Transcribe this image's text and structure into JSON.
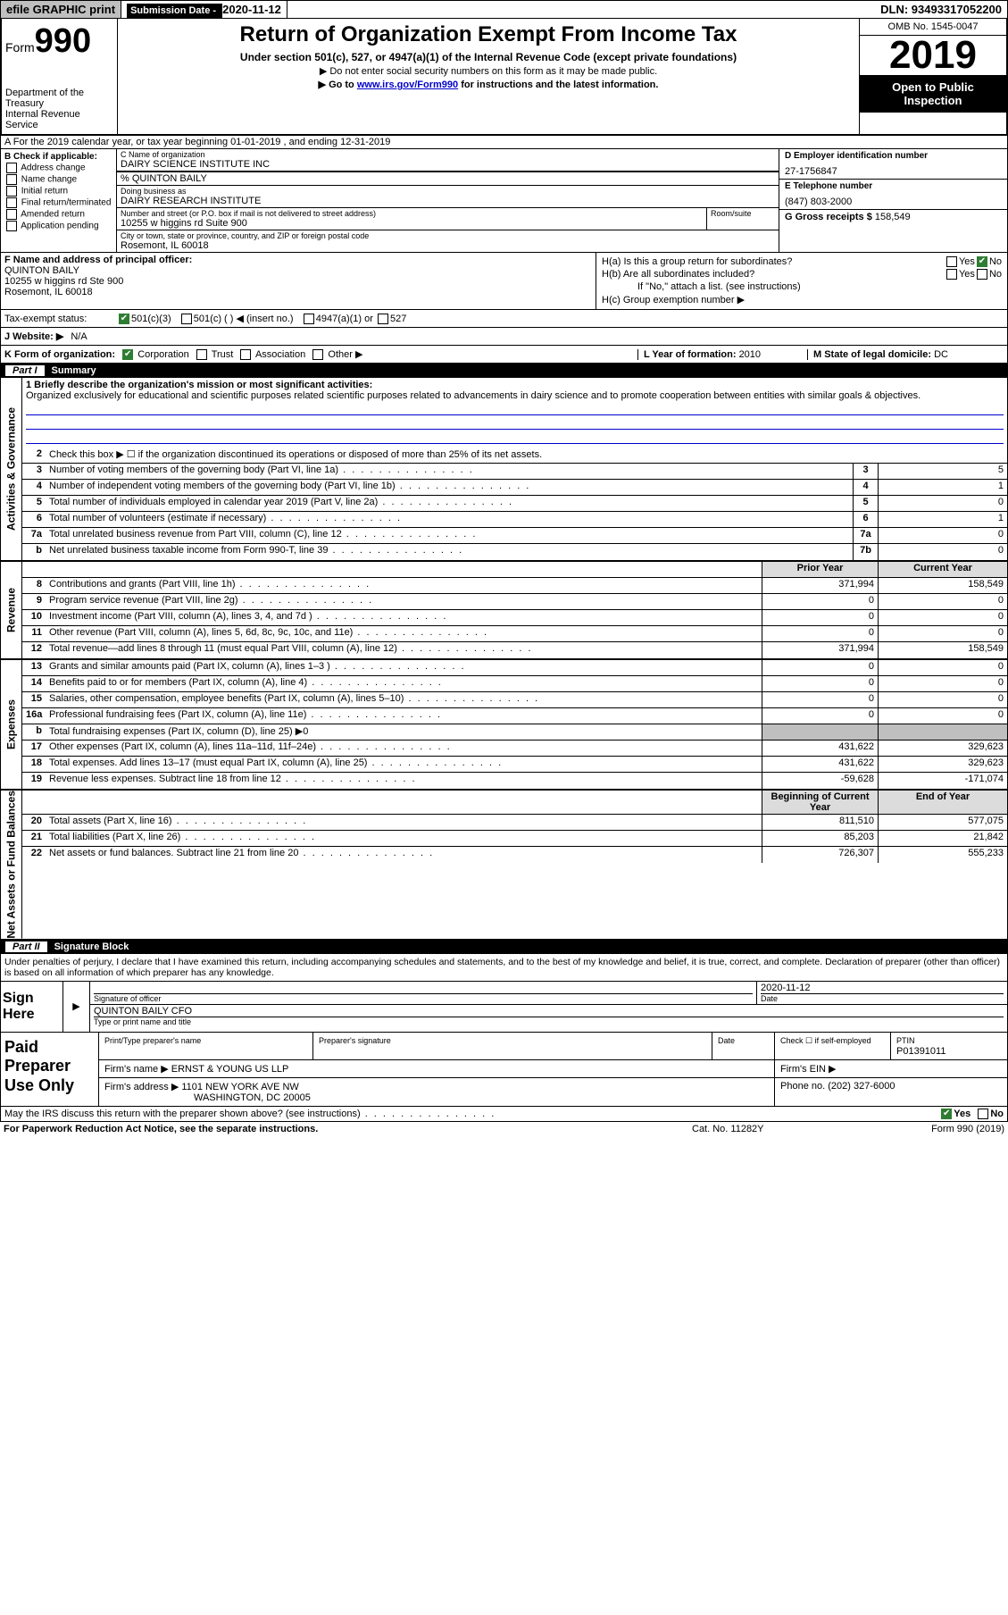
{
  "top": {
    "efile": "efile GRAPHIC print",
    "sub_date_lbl": "Submission Date - ",
    "sub_date": "2020-11-12",
    "dln": "DLN: 93493317052200"
  },
  "header": {
    "form_word": "Form",
    "form_num": "990",
    "dept": "Department of the Treasury",
    "irs": "Internal Revenue Service",
    "title": "Return of Organization Exempt From Income Tax",
    "sub1": "Under section 501(c), 527, or 4947(a)(1) of the Internal Revenue Code (except private foundations)",
    "sub2": "▶ Do not enter social security numbers on this form as it may be made public.",
    "sub3_pre": "▶ Go to ",
    "sub3_link": "www.irs.gov/Form990",
    "sub3_post": " for instructions and the latest information.",
    "omb": "OMB No. 1545-0047",
    "year": "2019",
    "open": "Open to Public Inspection"
  },
  "row_a": "A For the 2019 calendar year, or tax year beginning 01-01-2019   , and ending 12-31-2019",
  "col_b": {
    "hdr": "B Check if applicable:",
    "opts": [
      "Address change",
      "Name change",
      "Initial return",
      "Final return/terminated",
      "Amended return",
      "Application pending"
    ]
  },
  "col_c": {
    "name_lbl": "C Name of organization",
    "name": "DAIRY SCIENCE INSTITUTE INC",
    "care_lbl": "% QUINTON BAILY",
    "dba_lbl": "Doing business as",
    "dba": "DAIRY RESEARCH INSTITUTE",
    "street_lbl": "Number and street (or P.O. box if mail is not delivered to street address)",
    "street": "10255 w higgins rd Suite 900",
    "room_lbl": "Room/suite",
    "city_lbl": "City or town, state or province, country, and ZIP or foreign postal code",
    "city": "Rosemont, IL  60018"
  },
  "col_d": {
    "ein_lbl": "D Employer identification number",
    "ein": "27-1756847",
    "tel_lbl": "E Telephone number",
    "tel": "(847) 803-2000",
    "gross_lbl": "G Gross receipts $ ",
    "gross": "158,549"
  },
  "col_f": {
    "lbl": "F  Name and address of principal officer:",
    "name": "QUINTON BAILY",
    "addr1": "10255 w higgins rd Ste 900",
    "addr2": "Rosemont, IL  60018"
  },
  "col_h": {
    "a": "H(a)  Is this a group return for subordinates?",
    "b": "H(b)  Are all subordinates included?",
    "b_note": "If \"No,\" attach a list. (see instructions)",
    "c": "H(c)  Group exemption number ▶",
    "yes": "Yes",
    "no": "No"
  },
  "row_i": {
    "lbl": "Tax-exempt status:",
    "o1": "501(c)(3)",
    "o2": "501(c) (  ) ◀ (insert no.)",
    "o3": "4947(a)(1) or",
    "o4": "527"
  },
  "row_j": {
    "lbl": "J  Website: ▶",
    "val": "N/A"
  },
  "row_k": {
    "lbl": "K Form of organization:",
    "o1": "Corporation",
    "o2": "Trust",
    "o3": "Association",
    "o4": "Other ▶",
    "l_lbl": "L Year of formation: ",
    "l_val": "2010",
    "m_lbl": "M State of legal domicile: ",
    "m_val": "DC"
  },
  "part1": {
    "num": "Part I",
    "title": "Summary"
  },
  "side_labels": {
    "gov": "Activities & Governance",
    "rev": "Revenue",
    "exp": "Expenses",
    "net": "Net Assets or\nFund Balances"
  },
  "mission": {
    "lbl": "1  Briefly describe the organization's mission or most significant activities:",
    "text": "Organized exclusively for educational and scientific purposes related scientific purposes related to advancements in dairy science and to promote cooperation between entities with similar goals & objectives."
  },
  "gov_rows": [
    {
      "n": "2",
      "t": "Check this box ▶ ☐  if the organization discontinued its operations or disposed of more than 25% of its net assets."
    },
    {
      "n": "3",
      "t": "Number of voting members of the governing body (Part VI, line 1a)",
      "box": "3",
      "v": "5"
    },
    {
      "n": "4",
      "t": "Number of independent voting members of the governing body (Part VI, line 1b)",
      "box": "4",
      "v": "1"
    },
    {
      "n": "5",
      "t": "Total number of individuals employed in calendar year 2019 (Part V, line 2a)",
      "box": "5",
      "v": "0"
    },
    {
      "n": "6",
      "t": "Total number of volunteers (estimate if necessary)",
      "box": "6",
      "v": "1"
    },
    {
      "n": "7a",
      "t": "Total unrelated business revenue from Part VIII, column (C), line 12",
      "box": "7a",
      "v": "0"
    },
    {
      "n": "b",
      "t": "Net unrelated business taxable income from Form 990-T, line 39",
      "box": "7b",
      "v": "0"
    }
  ],
  "col_hdr": {
    "prior": "Prior Year",
    "current": "Current Year"
  },
  "rev_rows": [
    {
      "n": "8",
      "t": "Contributions and grants (Part VIII, line 1h)",
      "p": "371,994",
      "c": "158,549"
    },
    {
      "n": "9",
      "t": "Program service revenue (Part VIII, line 2g)",
      "p": "0",
      "c": "0"
    },
    {
      "n": "10",
      "t": "Investment income (Part VIII, column (A), lines 3, 4, and 7d )",
      "p": "0",
      "c": "0"
    },
    {
      "n": "11",
      "t": "Other revenue (Part VIII, column (A), lines 5, 6d, 8c, 9c, 10c, and 11e)",
      "p": "0",
      "c": "0"
    },
    {
      "n": "12",
      "t": "Total revenue—add lines 8 through 11 (must equal Part VIII, column (A), line 12)",
      "p": "371,994",
      "c": "158,549"
    }
  ],
  "exp_rows": [
    {
      "n": "13",
      "t": "Grants and similar amounts paid (Part IX, column (A), lines 1–3 )",
      "p": "0",
      "c": "0"
    },
    {
      "n": "14",
      "t": "Benefits paid to or for members (Part IX, column (A), line 4)",
      "p": "0",
      "c": "0"
    },
    {
      "n": "15",
      "t": "Salaries, other compensation, employee benefits (Part IX, column (A), lines 5–10)",
      "p": "0",
      "c": "0"
    },
    {
      "n": "16a",
      "t": "Professional fundraising fees (Part IX, column (A), line 11e)",
      "p": "0",
      "c": "0"
    },
    {
      "n": "b",
      "t": "Total fundraising expenses (Part IX, column (D), line 25) ▶0",
      "shade": true
    },
    {
      "n": "17",
      "t": "Other expenses (Part IX, column (A), lines 11a–11d, 11f–24e)",
      "p": "431,622",
      "c": "329,623"
    },
    {
      "n": "18",
      "t": "Total expenses. Add lines 13–17 (must equal Part IX, column (A), line 25)",
      "p": "431,622",
      "c": "329,623"
    },
    {
      "n": "19",
      "t": "Revenue less expenses. Subtract line 18 from line 12",
      "p": "-59,628",
      "c": "-171,074"
    }
  ],
  "net_hdr": {
    "begin": "Beginning of Current Year",
    "end": "End of Year"
  },
  "net_rows": [
    {
      "n": "20",
      "t": "Total assets (Part X, line 16)",
      "p": "811,510",
      "c": "577,075"
    },
    {
      "n": "21",
      "t": "Total liabilities (Part X, line 26)",
      "p": "85,203",
      "c": "21,842"
    },
    {
      "n": "22",
      "t": "Net assets or fund balances. Subtract line 21 from line 20",
      "p": "726,307",
      "c": "555,233"
    }
  ],
  "part2": {
    "num": "Part II",
    "title": "Signature Block"
  },
  "sig_intro": "Under penalties of perjury, I declare that I have examined this return, including accompanying schedules and statements, and to the best of my knowledge and belief, it is true, correct, and complete. Declaration of preparer (other than officer) is based on all information of which preparer has any knowledge.",
  "sign": {
    "here": "Sign Here",
    "sig_lbl": "Signature of officer",
    "date_lbl": "Date",
    "date": "2020-11-12",
    "name": "QUINTON BAILY CFO",
    "name_lbl": "Type or print name and title"
  },
  "paid": {
    "title": "Paid Preparer Use Only",
    "c1": "Print/Type preparer's name",
    "c2": "Preparer's signature",
    "c3": "Date",
    "c4_lbl": "Check ☐ if self-employed",
    "c5_lbl": "PTIN",
    "ptin": "P01391011",
    "firm_lbl": "Firm's name    ▶",
    "firm": "ERNST & YOUNG US LLP",
    "ein_lbl": "Firm's EIN ▶",
    "addr_lbl": "Firm's address ▶",
    "addr1": "1101 NEW YORK AVE NW",
    "addr2": "WASHINGTON, DC  20005",
    "phone_lbl": "Phone no. ",
    "phone": "(202) 327-6000"
  },
  "foot": {
    "q": "May the IRS discuss this return with the preparer shown above? (see instructions)",
    "yes": "Yes",
    "no": "No"
  },
  "footer": {
    "l": "For Paperwork Reduction Act Notice, see the separate instructions.",
    "m": "Cat. No. 11282Y",
    "r": "Form 990 (2019)"
  }
}
